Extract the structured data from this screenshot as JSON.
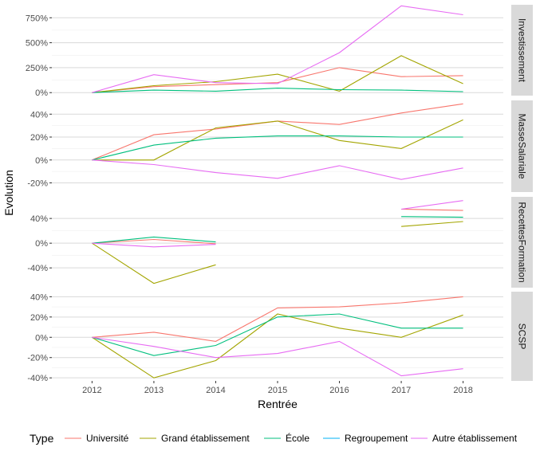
{
  "chart_data": {
    "type": "line",
    "xlabel": "Rentrée",
    "ylabel": "Evolution",
    "x_ticks": [
      "2012",
      "2013",
      "2014",
      "2015",
      "2016",
      "2017",
      "2018"
    ],
    "legend": {
      "title": "Type",
      "position": "bottom",
      "entries": [
        {
          "name": "Université",
          "color": "#F8766D"
        },
        {
          "name": "Grand établissement",
          "color": "#A3A500"
        },
        {
          "name": "École",
          "color": "#00BF7D"
        },
        {
          "name": "Regroupement",
          "color": "#00B0F6"
        },
        {
          "name": "Autre établissement",
          "color": "#E76BF3"
        }
      ]
    },
    "grid": true,
    "panels": [
      {
        "strip": "Investissement",
        "ylim": [
          -30,
          880
        ],
        "y_ticks": [
          0,
          250,
          500,
          750
        ],
        "y_tick_labels": [
          "0%",
          "250%",
          "500%",
          "750%"
        ],
        "series": [
          {
            "name": "Université",
            "color": "#F8766D",
            "points": [
              [
                2012,
                0
              ],
              [
                2013,
                60
              ],
              [
                2014,
                80
              ],
              [
                2015,
                100
              ],
              [
                2016,
                250
              ],
              [
                2017,
                160
              ],
              [
                2018,
                170
              ]
            ]
          },
          {
            "name": "Grand établissement",
            "color": "#A3A500",
            "points": [
              [
                2012,
                0
              ],
              [
                2013,
                70
              ],
              [
                2014,
                110
              ],
              [
                2015,
                185
              ],
              [
                2016,
                15
              ],
              [
                2017,
                370
              ],
              [
                2018,
                90
              ]
            ]
          },
          {
            "name": "École",
            "color": "#00BF7D",
            "points": [
              [
                2012,
                0
              ],
              [
                2013,
                25
              ],
              [
                2014,
                15
              ],
              [
                2015,
                45
              ],
              [
                2016,
                30
              ],
              [
                2017,
                25
              ],
              [
                2018,
                10
              ]
            ]
          },
          {
            "name": "Autre établissement",
            "color": "#E76BF3",
            "points": [
              [
                2012,
                0
              ],
              [
                2013,
                180
              ],
              [
                2014,
                100
              ],
              [
                2015,
                90
              ],
              [
                2016,
                400
              ],
              [
                2017,
                870
              ],
              [
                2018,
                780
              ]
            ]
          }
        ]
      },
      {
        "strip": "MasseSalariale",
        "ylim": [
          -28,
          52
        ],
        "y_ticks": [
          -20,
          0,
          20,
          40
        ],
        "y_tick_labels": [
          "-20%",
          "0%",
          "20%",
          "40%"
        ],
        "series": [
          {
            "name": "Université",
            "color": "#F8766D",
            "points": [
              [
                2012,
                0
              ],
              [
                2013,
                22
              ],
              [
                2014,
                27
              ],
              [
                2015,
                34
              ],
              [
                2016,
                31
              ],
              [
                2017,
                41
              ],
              [
                2018,
                49
              ]
            ]
          },
          {
            "name": "Grand établissement",
            "color": "#A3A500",
            "points": [
              [
                2012,
                0
              ],
              [
                2013,
                0
              ],
              [
                2014,
                28
              ],
              [
                2015,
                34
              ],
              [
                2016,
                17
              ],
              [
                2017,
                10
              ],
              [
                2018,
                35
              ]
            ]
          },
          {
            "name": "École",
            "color": "#00BF7D",
            "points": [
              [
                2012,
                0
              ],
              [
                2013,
                13
              ],
              [
                2014,
                19
              ],
              [
                2015,
                21
              ],
              [
                2016,
                21
              ],
              [
                2017,
                20
              ],
              [
                2018,
                20
              ]
            ]
          },
          {
            "name": "Autre établissement",
            "color": "#E76BF3",
            "points": [
              [
                2012,
                0
              ],
              [
                2013,
                -4
              ],
              [
                2014,
                -11
              ],
              [
                2015,
                -16
              ],
              [
                2016,
                -5
              ],
              [
                2017,
                -17
              ],
              [
                2018,
                -7
              ]
            ]
          }
        ]
      },
      {
        "strip": "RecettesFormation",
        "ylim": [
          -72,
          75
        ],
        "y_ticks": [
          -40,
          0,
          40
        ],
        "y_tick_labels": [
          "-40%",
          "0%",
          "40%"
        ],
        "series": [
          {
            "name": "Université",
            "color": "#F8766D",
            "points": [
              [
                2012,
                0
              ],
              [
                2013,
                6
              ],
              [
                2014,
                -1
              ],
              [
                2015,
                null
              ],
              [
                2016,
                null
              ],
              [
                2017,
                55
              ],
              [
                2018,
                53
              ]
            ]
          },
          {
            "name": "Grand établissement",
            "color": "#A3A500",
            "points": [
              [
                2012,
                0
              ],
              [
                2013,
                -65
              ],
              [
                2014,
                -35
              ],
              [
                2015,
                null
              ],
              [
                2016,
                null
              ],
              [
                2017,
                27
              ],
              [
                2018,
                35
              ]
            ]
          },
          {
            "name": "École",
            "color": "#00BF7D",
            "points": [
              [
                2012,
                0
              ],
              [
                2013,
                10
              ],
              [
                2014,
                2
              ],
              [
                2015,
                null
              ],
              [
                2016,
                null
              ],
              [
                2017,
                43
              ],
              [
                2018,
                42
              ]
            ]
          },
          {
            "name": "Autre établissement",
            "color": "#E76BF3",
            "points": [
              [
                2012,
                0
              ],
              [
                2013,
                -6
              ],
              [
                2014,
                -2
              ],
              [
                2015,
                null
              ],
              [
                2016,
                null
              ],
              [
                2017,
                55
              ],
              [
                2018,
                69
              ]
            ]
          }
        ]
      },
      {
        "strip": "SCSP",
        "ylim": [
          -43,
          45
        ],
        "y_ticks": [
          -40,
          -20,
          0,
          20,
          40
        ],
        "y_tick_labels": [
          "-40%",
          "-20%",
          "0%",
          "20%",
          "40%"
        ],
        "series": [
          {
            "name": "Université",
            "color": "#F8766D",
            "points": [
              [
                2012,
                0
              ],
              [
                2013,
                5
              ],
              [
                2014,
                -4
              ],
              [
                2015,
                29
              ],
              [
                2016,
                30
              ],
              [
                2017,
                34
              ],
              [
                2018,
                40
              ]
            ]
          },
          {
            "name": "Grand établissement",
            "color": "#A3A500",
            "points": [
              [
                2012,
                0
              ],
              [
                2013,
                -40
              ],
              [
                2014,
                -23
              ],
              [
                2015,
                23
              ],
              [
                2016,
                9
              ],
              [
                2017,
                0
              ],
              [
                2018,
                22
              ]
            ]
          },
          {
            "name": "École",
            "color": "#00BF7D",
            "points": [
              [
                2012,
                0
              ],
              [
                2013,
                -18
              ],
              [
                2014,
                -8
              ],
              [
                2015,
                20
              ],
              [
                2016,
                23
              ],
              [
                2017,
                9
              ],
              [
                2018,
                9
              ]
            ]
          },
          {
            "name": "Autre établissement",
            "color": "#E76BF3",
            "points": [
              [
                2012,
                0
              ],
              [
                2013,
                -9
              ],
              [
                2014,
                -20
              ],
              [
                2015,
                -16
              ],
              [
                2016,
                -4
              ],
              [
                2017,
                -38
              ],
              [
                2018,
                -31
              ]
            ]
          }
        ]
      }
    ]
  }
}
